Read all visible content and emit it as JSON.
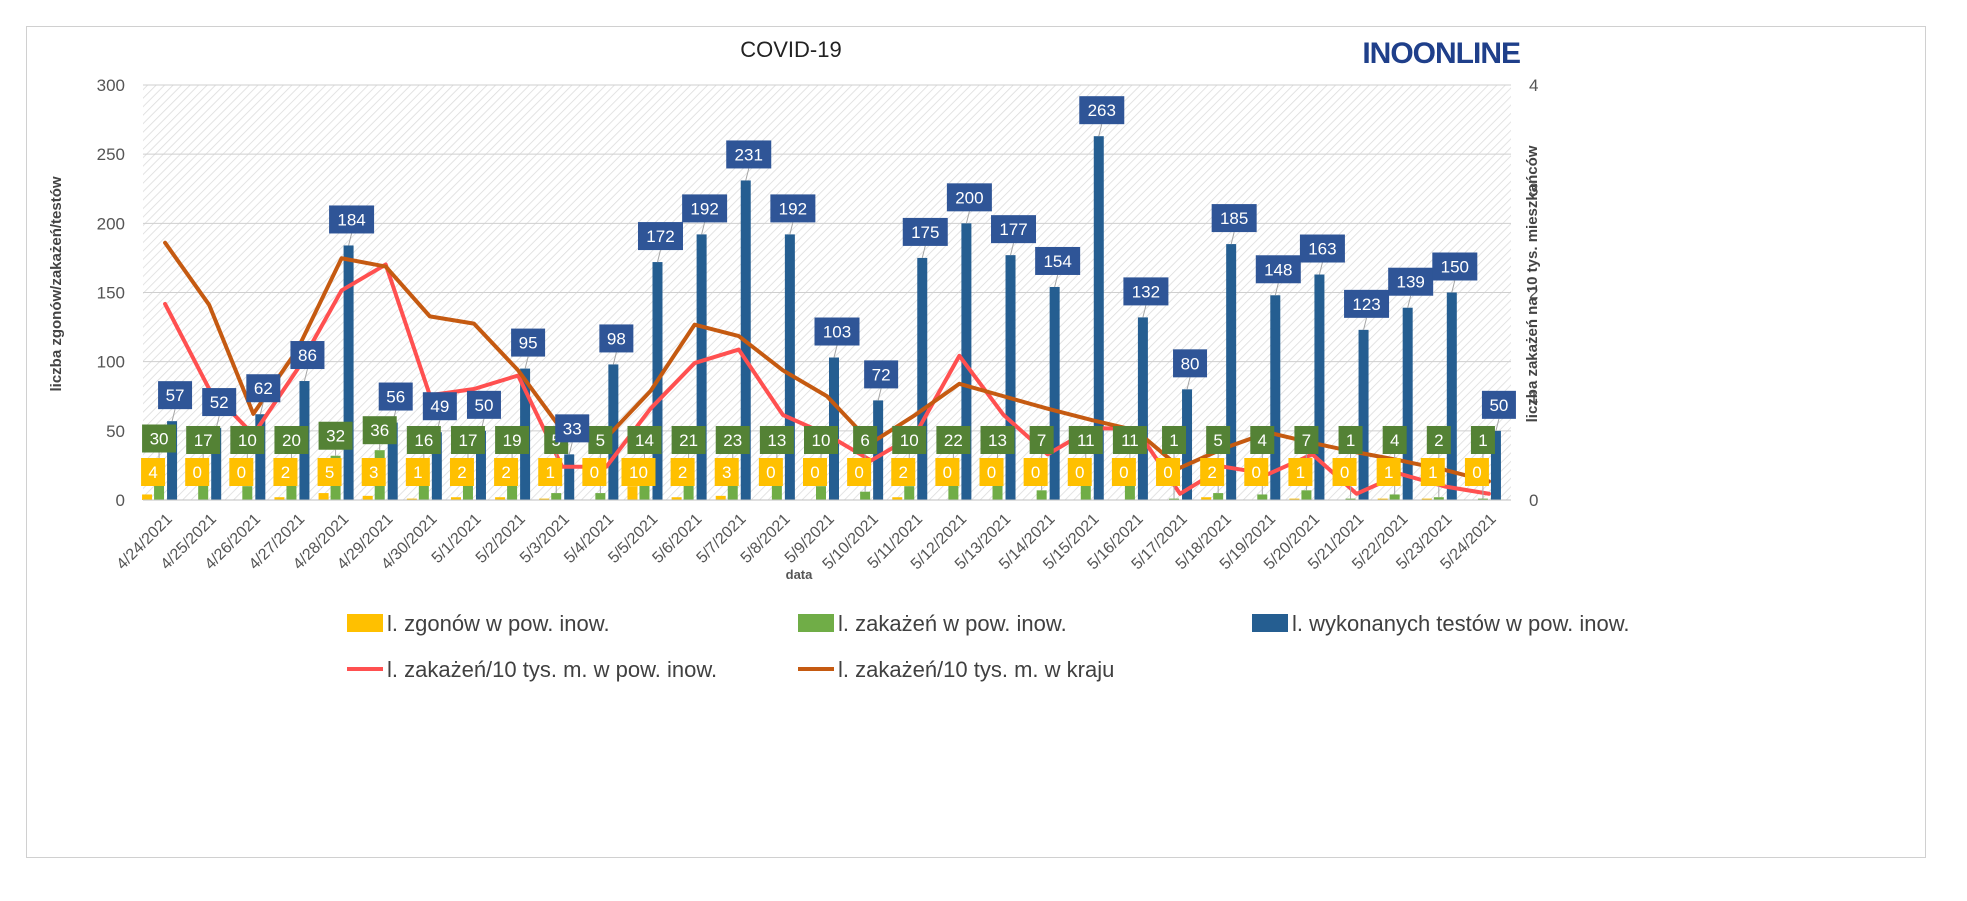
{
  "chart_data": {
    "type": "bar",
    "title": "COVID-19",
    "logo": "INOONLINE",
    "xlabel": "data",
    "ylabel": "liczba zgonów/zakażeń/testów",
    "y2label": "liczba zakażeń na 10 tys. mieszkańców",
    "ylim": [
      0,
      300
    ],
    "yticks": [
      "0",
      "50",
      "100",
      "150",
      "200",
      "250",
      "300"
    ],
    "y2lim": [
      0,
      4
    ],
    "y2ticks": [
      "0",
      "1",
      "2",
      "3",
      "4"
    ],
    "grid": true,
    "legend_position": "bottom",
    "categories": [
      "4/24/2021",
      "4/25/2021",
      "4/26/2021",
      "4/27/2021",
      "4/28/2021",
      "4/29/2021",
      "4/30/2021",
      "5/1/2021",
      "5/2/2021",
      "5/3/2021",
      "5/4/2021",
      "5/5/2021",
      "5/6/2021",
      "5/7/2021",
      "5/8/2021",
      "5/9/2021",
      "5/10/2021",
      "5/11/2021",
      "5/12/2021",
      "5/13/2021",
      "5/14/2021",
      "5/15/2021",
      "5/16/2021",
      "5/17/2021",
      "5/18/2021",
      "5/19/2021",
      "5/20/2021",
      "5/21/2021",
      "5/22/2021",
      "5/23/2021",
      "5/24/2021"
    ],
    "series": [
      {
        "name": "l. zgonów w pow. inow.",
        "kind": "bar",
        "axis": "left",
        "color": "#FFC000",
        "values": [
          4,
          0,
          0,
          2,
          5,
          3,
          1,
          2,
          2,
          1,
          0,
          10,
          2,
          3,
          0,
          0,
          0,
          2,
          0,
          0,
          0,
          0,
          0,
          0,
          2,
          0,
          1,
          0,
          1,
          1,
          0
        ]
      },
      {
        "name": "l. zakażeń w pow. inow.",
        "kind": "bar",
        "axis": "left",
        "color": "#70AD47",
        "values": [
          30,
          17,
          10,
          20,
          32,
          36,
          16,
          17,
          19,
          5,
          5,
          14,
          21,
          23,
          13,
          10,
          6,
          10,
          22,
          13,
          7,
          11,
          11,
          1,
          5,
          4,
          7,
          1,
          4,
          2,
          1
        ]
      },
      {
        "name": "l. wykonanych testów w pow. inow.",
        "kind": "bar",
        "axis": "left",
        "color": "#255E91",
        "values": [
          57,
          52,
          62,
          86,
          184,
          56,
          49,
          50,
          95,
          33,
          98,
          172,
          192,
          231,
          192,
          103,
          72,
          175,
          200,
          177,
          154,
          263,
          132,
          80,
          185,
          148,
          163,
          123,
          139,
          150,
          50
        ]
      },
      {
        "name": "l. zakażeń/10 tys. m. w pow. inow.",
        "kind": "line",
        "axis": "right",
        "color": "#FF5050",
        "values": [
          1.89,
          1.07,
          0.63,
          1.26,
          2.02,
          2.27,
          1.01,
          1.07,
          1.2,
          0.32,
          0.32,
          0.88,
          1.32,
          1.45,
          0.82,
          0.63,
          0.38,
          0.63,
          1.39,
          0.82,
          0.44,
          0.69,
          0.69,
          0.06,
          0.32,
          0.25,
          0.44,
          0.06,
          0.25,
          0.13,
          0.06
        ]
      },
      {
        "name": "l. zakażeń/10 tys. m. w kraju",
        "kind": "line",
        "axis": "right",
        "color": "#C55A11",
        "values": [
          2.48,
          1.88,
          0.83,
          1.45,
          2.33,
          2.25,
          1.77,
          1.7,
          1.25,
          0.67,
          0.6,
          1.05,
          1.69,
          1.58,
          1.25,
          1.0,
          0.55,
          0.82,
          1.12,
          1.0,
          0.88,
          0.77,
          0.67,
          0.31,
          0.5,
          0.65,
          0.55,
          0.46,
          0.38,
          0.29,
          0.18
        ]
      }
    ]
  }
}
